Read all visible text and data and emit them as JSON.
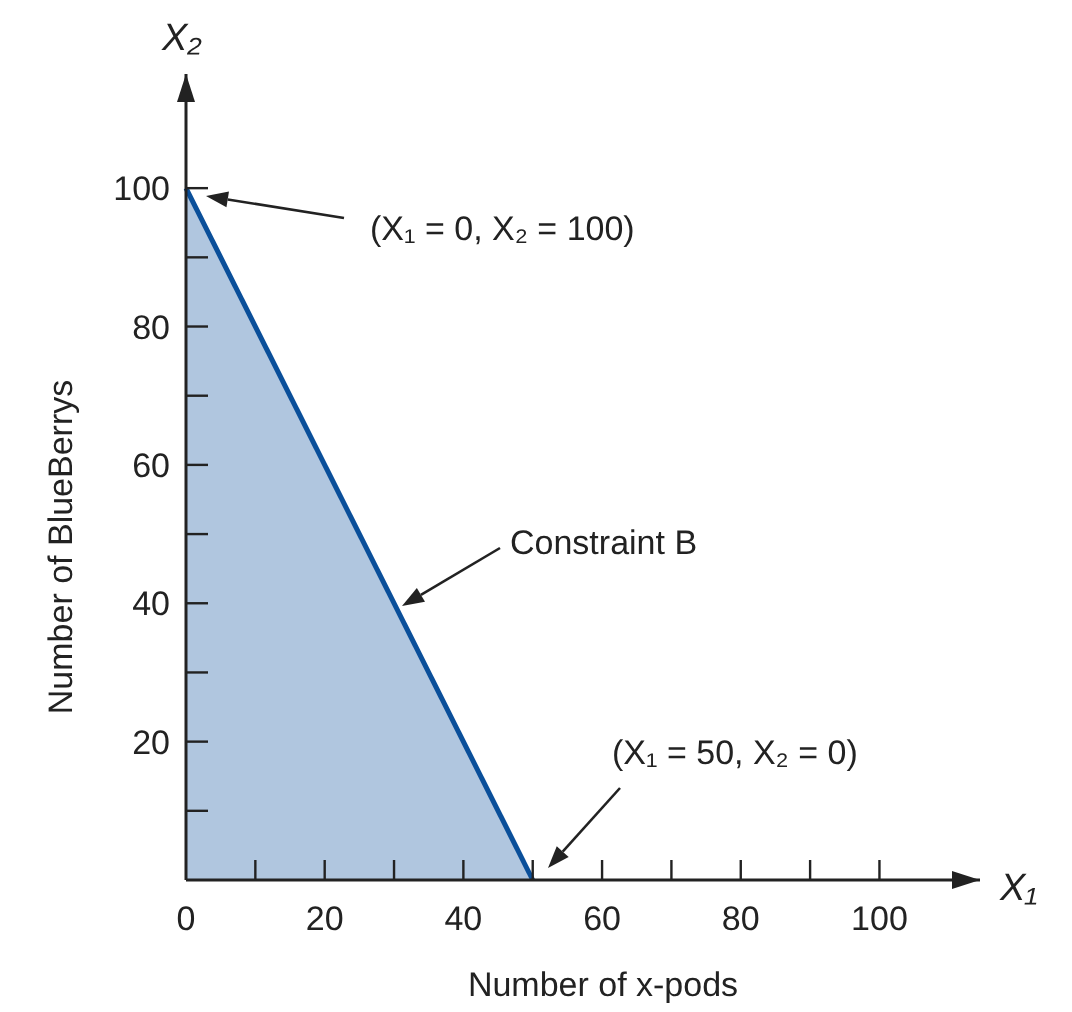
{
  "chart_data": {
    "type": "area",
    "xlabel": "Number of x-pods",
    "ylabel": "Number of BlueBerrys",
    "x": [
      0,
      50
    ],
    "series": [
      {
        "color": "#0a4f9a",
        "values": [
          100,
          0
        ]
      }
    ],
    "xlim": [
      0,
      114.5
    ],
    "ylim": [
      0,
      116.5
    ],
    "xticks": [
      0,
      {
        "value": 10,
        "label": null
      },
      20,
      {
        "value": 30,
        "label": null
      },
      40,
      {
        "value": 50,
        "label": null
      },
      60,
      {
        "value": 70,
        "label": null
      },
      80,
      {
        "value": 90,
        "label": null
      },
      100
    ],
    "yticks": [
      {
        "value": 10,
        "label": null
      },
      20,
      {
        "value": 30,
        "label": null
      },
      40,
      {
        "value": 50,
        "label": null
      },
      60,
      {
        "value": 70,
        "label": null
      },
      80,
      {
        "value": 90,
        "label": null
      },
      100
    ],
    "annotations": [
      "(X₁ = 0, X₂ = 100)",
      "Constraint B",
      "(X₁ = 50, X₂ = 0)",
      "X₁",
      "X₂"
    ]
  }
}
